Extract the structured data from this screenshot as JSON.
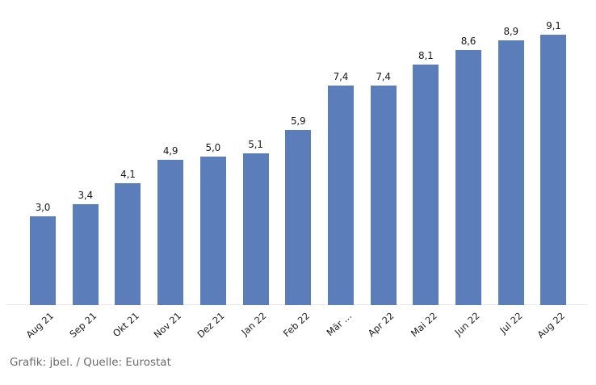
{
  "chart_data": {
    "type": "bar",
    "categories": [
      "Aug 21",
      "Sep 21",
      "Okt 21",
      "Nov 21",
      "Dez 21",
      "Jan 22",
      "Feb 22",
      "Mär …",
      "Apr 22",
      "Mai 22",
      "Jun 22",
      "Jul 22",
      "Aug 22"
    ],
    "values": [
      3.0,
      3.4,
      4.1,
      4.9,
      5.0,
      5.1,
      5.9,
      7.4,
      7.4,
      8.1,
      8.6,
      8.9,
      9.1
    ],
    "value_labels": [
      "3,0",
      "3,4",
      "4,1",
      "4,9",
      "5,0",
      "5,1",
      "5,9",
      "7,4",
      "7,4",
      "8,1",
      "8,6",
      "8,9",
      "9,1"
    ],
    "title": "",
    "xlabel": "",
    "ylabel": "",
    "ylim": [
      0,
      9.8
    ],
    "grid": false,
    "legend": false,
    "bar_color": "#5b7db9"
  },
  "colors": {
    "bar": "#5b7db9",
    "value_text": "#1a1a1a",
    "axis_label_text": "#1a1a1a",
    "axis_line": "#e8e8ec",
    "footer_text": "#6b6b6b",
    "background": "#ffffff"
  },
  "footer": {
    "credit": "Grafik: jbel. / Quelle: Eurostat"
  }
}
